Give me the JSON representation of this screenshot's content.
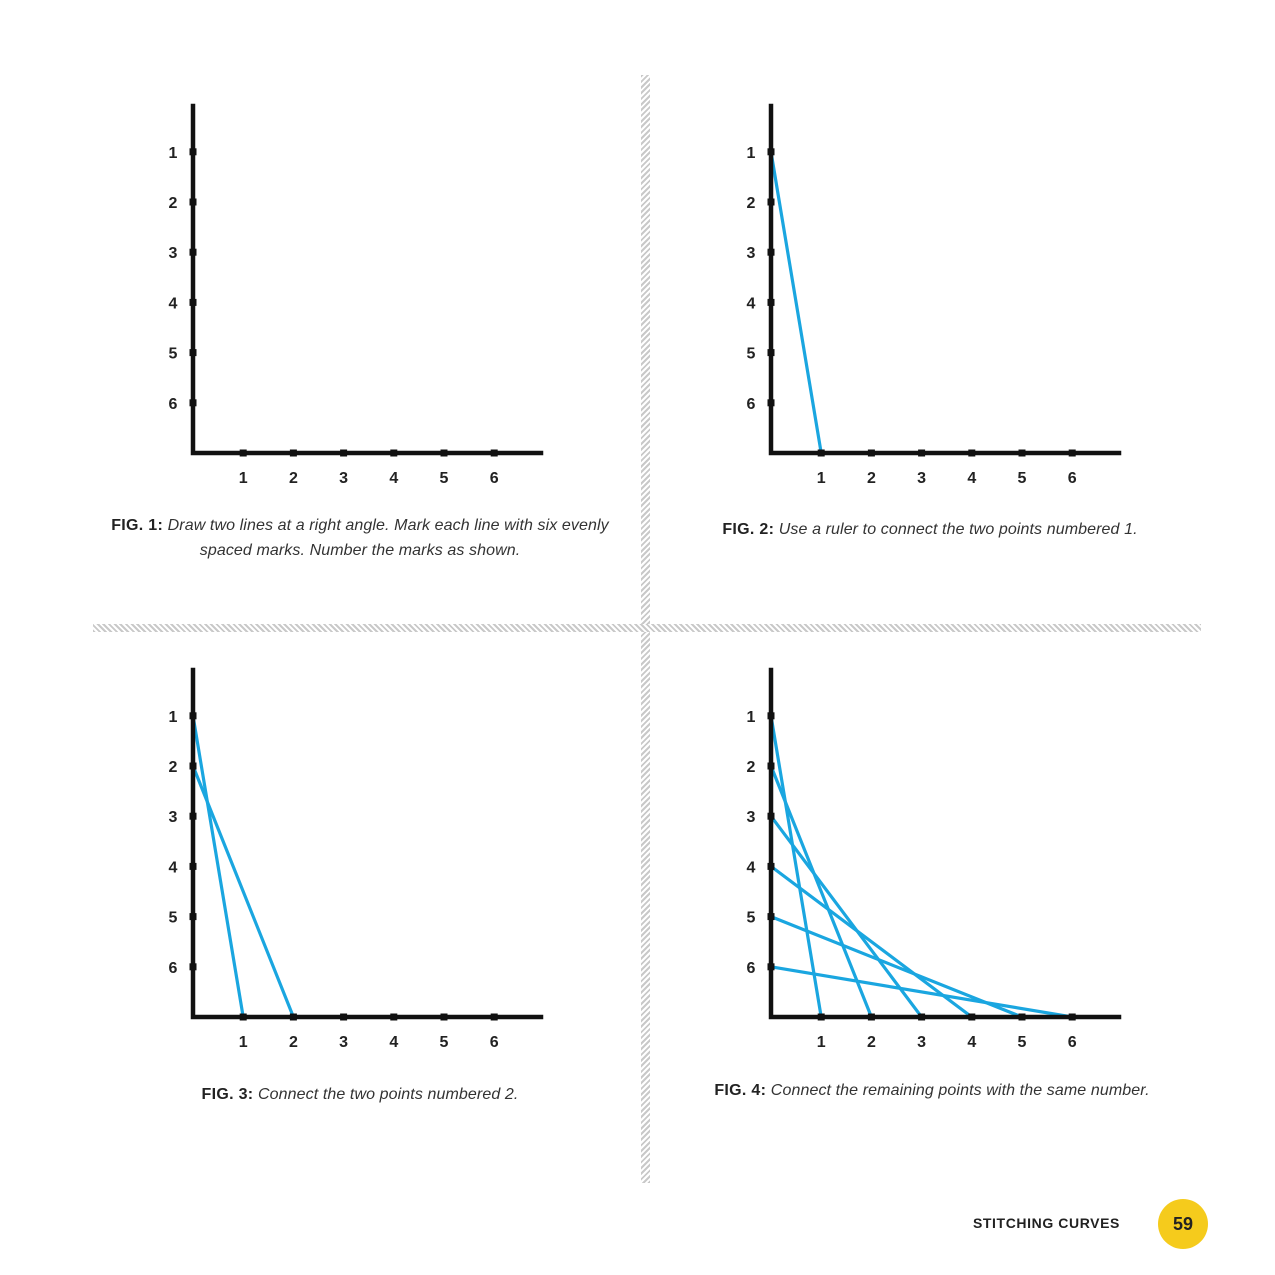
{
  "figures": [
    {
      "id": "fig1",
      "y_labels": [
        "1",
        "2",
        "3",
        "4",
        "5",
        "6"
      ],
      "x_labels": [
        "1",
        "2",
        "3",
        "4",
        "5",
        "6"
      ],
      "connections": [],
      "caption_bold": "FIG. 1:",
      "caption_text": "Draw two lines at a right angle. Mark each line with six evenly spaced marks. Number the marks as shown."
    },
    {
      "id": "fig2",
      "y_labels": [
        "1",
        "2",
        "3",
        "4",
        "5",
        "6"
      ],
      "x_labels": [
        "1",
        "2",
        "3",
        "4",
        "5",
        "6"
      ],
      "connections": [
        1
      ],
      "caption_bold": "FIG. 2:",
      "caption_text": "Use a ruler to connect the two points numbered 1."
    },
    {
      "id": "fig3",
      "y_labels": [
        "1",
        "2",
        "3",
        "4",
        "5",
        "6"
      ],
      "x_labels": [
        "1",
        "2",
        "3",
        "4",
        "5",
        "6"
      ],
      "connections": [
        1,
        2
      ],
      "caption_bold": "FIG. 3:",
      "caption_text": "Connect the two points numbered 2."
    },
    {
      "id": "fig4",
      "y_labels": [
        "1",
        "2",
        "3",
        "4",
        "5",
        "6"
      ],
      "x_labels": [
        "1",
        "2",
        "3",
        "4",
        "5",
        "6"
      ],
      "connections": [
        1,
        2,
        3,
        4,
        5,
        6
      ],
      "caption_bold": "FIG. 4:",
      "caption_text": "Connect the remaining points with the same number."
    }
  ],
  "colors": {
    "string": "#1aa6e0",
    "axis": "#111111",
    "page_badge": "#f5cb1c",
    "divider": "#c9c9c9"
  },
  "footer": {
    "section_title": "STITCHING CURVES",
    "page_number": "59"
  }
}
